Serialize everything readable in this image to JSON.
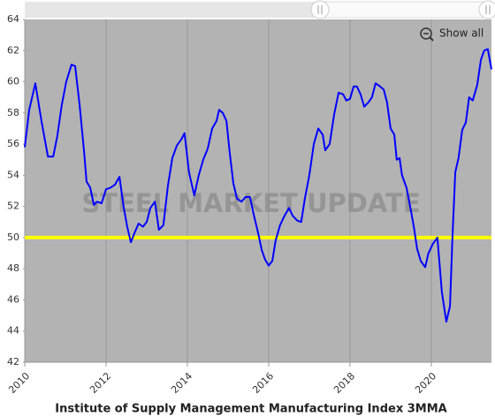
{
  "chart_data": {
    "type": "line",
    "title": "Institute of Supply Management Manufacturing Index 3MMA",
    "watermark": "STEEL MARKET UPDATE",
    "button": "Show all",
    "x": [
      2010.0,
      2010.11,
      2010.26,
      2010.41,
      2010.57,
      2010.7,
      2010.8,
      2010.91,
      2011.02,
      2011.15,
      2011.24,
      2011.35,
      2011.46,
      2011.52,
      2011.61,
      2011.7,
      2011.78,
      2011.89,
      2012.0,
      2012.11,
      2012.22,
      2012.33,
      2012.43,
      2012.52,
      2012.61,
      2012.7,
      2012.8,
      2012.91,
      2013.0,
      2013.09,
      2013.2,
      2013.3,
      2013.41,
      2013.52,
      2013.63,
      2013.74,
      2013.85,
      2013.93,
      2014.04,
      2014.17,
      2014.28,
      2014.39,
      2014.5,
      2014.61,
      2014.72,
      2014.78,
      2014.87,
      2014.96,
      2015.04,
      2015.13,
      2015.22,
      2015.33,
      2015.43,
      2015.54,
      2015.63,
      2015.74,
      2015.83,
      2015.91,
      2016.0,
      2016.09,
      2016.17,
      2016.28,
      2016.39,
      2016.5,
      2016.59,
      2016.7,
      2016.8,
      2016.89,
      2017.0,
      2017.11,
      2017.22,
      2017.33,
      2017.39,
      2017.5,
      2017.61,
      2017.72,
      2017.83,
      2017.91,
      2018.0,
      2018.09,
      2018.17,
      2018.26,
      2018.35,
      2018.46,
      2018.54,
      2018.63,
      2018.74,
      2018.83,
      2018.91,
      2019.0,
      2019.09,
      2019.15,
      2019.22,
      2019.28,
      2019.39,
      2019.48,
      2019.57,
      2019.65,
      2019.74,
      2019.85,
      2019.93,
      2020.04,
      2020.15,
      2020.26,
      2020.37,
      2020.46,
      2020.52,
      2020.59,
      2020.67,
      2020.76,
      2020.85,
      2020.93,
      2021.02,
      2021.13,
      2021.22,
      2021.3,
      2021.39,
      2021.48
    ],
    "series": [
      {
        "color": "#0000ff",
        "values": [
          55.8,
          58.2,
          59.9,
          57.5,
          55.2,
          55.2,
          56.5,
          58.5,
          60.0,
          61.1,
          61.0,
          58.5,
          55.5,
          53.6,
          53.2,
          52.1,
          52.3,
          52.2,
          53.1,
          53.2,
          53.4,
          53.9,
          52.0,
          50.7,
          49.7,
          50.3,
          50.9,
          50.7,
          51.0,
          51.9,
          52.3,
          50.5,
          50.8,
          53.3,
          55.1,
          55.9,
          56.3,
          56.7,
          54.2,
          52.7,
          54.0,
          55.0,
          55.7,
          57.0,
          57.5,
          58.2,
          58.0,
          57.5,
          55.5,
          53.5,
          52.5,
          52.3,
          52.6,
          52.6,
          51.5,
          50.3,
          49.2,
          48.6,
          48.2,
          48.5,
          49.8,
          50.8,
          51.4,
          51.9,
          51.4,
          51.1,
          51.0,
          52.5,
          54.0,
          56.0,
          57.0,
          56.6,
          55.6,
          56.0,
          57.9,
          59.3,
          59.2,
          58.8,
          58.9,
          59.7,
          59.7,
          59.2,
          58.4,
          58.7,
          59.0,
          59.9,
          59.7,
          59.5,
          58.7,
          57.0,
          56.6,
          55.0,
          55.1,
          54.0,
          53.2,
          52.0,
          50.7,
          49.3,
          48.5,
          48.1,
          49.0,
          49.6,
          50.0,
          46.5,
          44.6,
          45.6,
          50.0,
          54.2,
          55.1,
          56.9,
          57.4,
          59.0,
          58.8,
          59.8,
          61.4,
          62.0,
          62.1,
          60.8
        ]
      }
    ],
    "reference_line": {
      "value": 50,
      "color": "#ffff00"
    },
    "xlim": [
      2010,
      2021.48
    ],
    "xticks": [
      2010,
      2012,
      2014,
      2016,
      2018,
      2020
    ],
    "ylim": [
      42,
      64
    ],
    "yticks": [
      42,
      44,
      46,
      48,
      50,
      52,
      54,
      56,
      58,
      60,
      62,
      64
    ],
    "xgrid": true,
    "background": "#b3b3b3"
  }
}
